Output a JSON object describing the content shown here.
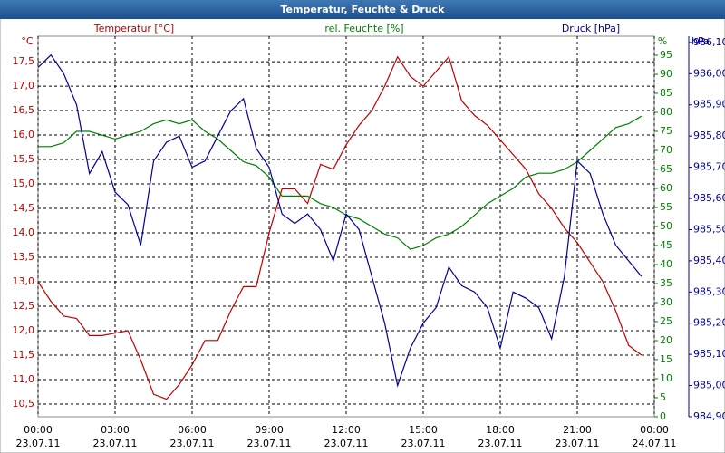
{
  "chart_data": {
    "type": "line",
    "title": "Temperatur, Feuchte & Druck",
    "axis_labels": {
      "y_unit": "°C",
      "y_title": "Temperatur [°C]",
      "y2_title": "rel. Feuchte [%]",
      "y2_unit": "%",
      "y3_title": "Druck [hPa]",
      "y3_unit": "hPa"
    },
    "x": [
      0,
      0.5,
      1,
      1.5,
      2,
      2.5,
      3,
      3.5,
      4,
      4.5,
      5,
      5.5,
      6,
      6.5,
      7,
      7.5,
      8,
      8.5,
      9,
      9.5,
      10,
      10.5,
      11,
      11.5,
      12,
      12.5,
      13,
      13.5,
      14,
      14.5,
      15,
      15.5,
      16,
      16.5,
      17,
      17.5,
      18,
      18.5,
      19,
      19.5,
      20,
      20.5,
      21,
      21.5,
      22,
      22.5,
      23,
      23.5
    ],
    "xlim": [
      0,
      24
    ],
    "xticks": [
      {
        "value": 0,
        "label": "00:00"
      },
      {
        "value": 3,
        "label": "03:00"
      },
      {
        "value": 6,
        "label": "06:00"
      },
      {
        "value": 9,
        "label": "09:00"
      },
      {
        "value": 12,
        "label": "12:00"
      },
      {
        "value": 15,
        "label": "15:00"
      },
      {
        "value": 18,
        "label": "18:00"
      },
      {
        "value": 21,
        "label": "21:00"
      },
      {
        "value": 24,
        "label": "00:00"
      }
    ],
    "xtick_dates": [
      "23.07.11",
      "23.07.11",
      "23.07.11",
      "23.07.11",
      "23.07.11",
      "23.07.11",
      "23.07.11",
      "23.07.11",
      "24.07.11"
    ],
    "ylim": [
      10.24,
      18.02
    ],
    "yticks": [
      {
        "value": 10.5,
        "label": "10,5"
      },
      {
        "value": 11,
        "label": "11,0"
      },
      {
        "value": 11.5,
        "label": "11,5"
      },
      {
        "value": 12,
        "label": "12,0"
      },
      {
        "value": 12.5,
        "label": "12,5"
      },
      {
        "value": 13,
        "label": "13,0"
      },
      {
        "value": 13.5,
        "label": "13,5"
      },
      {
        "value": 14,
        "label": "14,0"
      },
      {
        "value": 14.5,
        "label": "14,5"
      },
      {
        "value": 15,
        "label": "15,0"
      },
      {
        "value": 15.5,
        "label": "15,5"
      },
      {
        "value": 16,
        "label": "16,0"
      },
      {
        "value": 16.5,
        "label": "16,5"
      },
      {
        "value": 17,
        "label": "17,0"
      },
      {
        "value": 17.5,
        "label": "17,5"
      }
    ],
    "y2lim": [
      0,
      100
    ],
    "y2ticks": [
      0,
      5,
      10,
      15,
      20,
      25,
      30,
      35,
      40,
      45,
      50,
      55,
      60,
      65,
      70,
      75,
      80,
      85,
      90,
      95
    ],
    "y3lim": [
      984.9,
      986.12
    ],
    "y3ticks": [
      {
        "value": 984.9,
        "label": "984,90"
      },
      {
        "value": 985.0,
        "label": "985,00"
      },
      {
        "value": 985.1,
        "label": "985,10"
      },
      {
        "value": 985.2,
        "label": "985,20"
      },
      {
        "value": 985.3,
        "label": "985,30"
      },
      {
        "value": 985.4,
        "label": "985,40"
      },
      {
        "value": 985.5,
        "label": "985,50"
      },
      {
        "value": 985.6,
        "label": "985,60"
      },
      {
        "value": 985.7,
        "label": "985,70"
      },
      {
        "value": 985.8,
        "label": "985,80"
      },
      {
        "value": 985.9,
        "label": "985,90"
      },
      {
        "value": 986.0,
        "label": "986,00"
      },
      {
        "value": 986.1,
        "label": "986,10"
      }
    ],
    "grid": true,
    "series": [
      {
        "name": "Temperatur",
        "color": "#c00000",
        "axis": "y",
        "values": [
          13.0,
          12.6,
          12.3,
          12.25,
          11.9,
          11.9,
          11.95,
          12.0,
          11.4,
          10.7,
          10.6,
          10.9,
          11.3,
          11.8,
          11.8,
          12.4,
          12.9,
          12.9,
          14.0,
          14.9,
          14.9,
          14.6,
          15.4,
          15.3,
          15.8,
          16.2,
          16.5,
          17.0,
          17.6,
          17.2,
          17.0,
          17.3,
          17.6,
          16.7,
          16.4,
          16.2,
          15.9,
          15.6,
          15.3,
          14.8,
          14.5,
          14.1,
          13.8,
          13.4,
          13.0,
          12.4,
          11.7,
          11.5
        ]
      },
      {
        "name": "rel. Feuchte",
        "color": "#008000",
        "axis": "y2",
        "values": [
          71,
          71,
          72,
          75,
          75,
          74,
          73,
          74,
          75,
          77,
          78,
          77,
          78,
          75,
          73,
          70,
          67,
          66,
          63,
          58,
          58,
          58,
          56,
          55,
          53,
          52,
          50,
          48,
          47,
          44,
          45,
          47,
          48,
          50,
          53,
          56,
          58,
          60,
          63,
          64,
          64,
          65,
          67,
          70,
          73,
          76,
          77,
          79
        ]
      },
      {
        "name": "Druck",
        "color": "#000099",
        "axis": "y3",
        "values": [
          986.02,
          986.06,
          986.0,
          985.9,
          985.68,
          985.75,
          985.62,
          985.58,
          985.45,
          985.72,
          985.78,
          985.8,
          985.7,
          985.72,
          985.8,
          985.88,
          985.92,
          985.76,
          985.7,
          985.55,
          985.52,
          985.55,
          985.5,
          985.4,
          985.55,
          985.5,
          985.35,
          985.2,
          985.0,
          985.12,
          985.2,
          985.25,
          985.38,
          985.32,
          985.3,
          985.25,
          985.12,
          985.3,
          985.28,
          985.25,
          985.15,
          985.35,
          985.72,
          985.68,
          985.55,
          985.45,
          985.4,
          985.35
        ]
      }
    ]
  }
}
